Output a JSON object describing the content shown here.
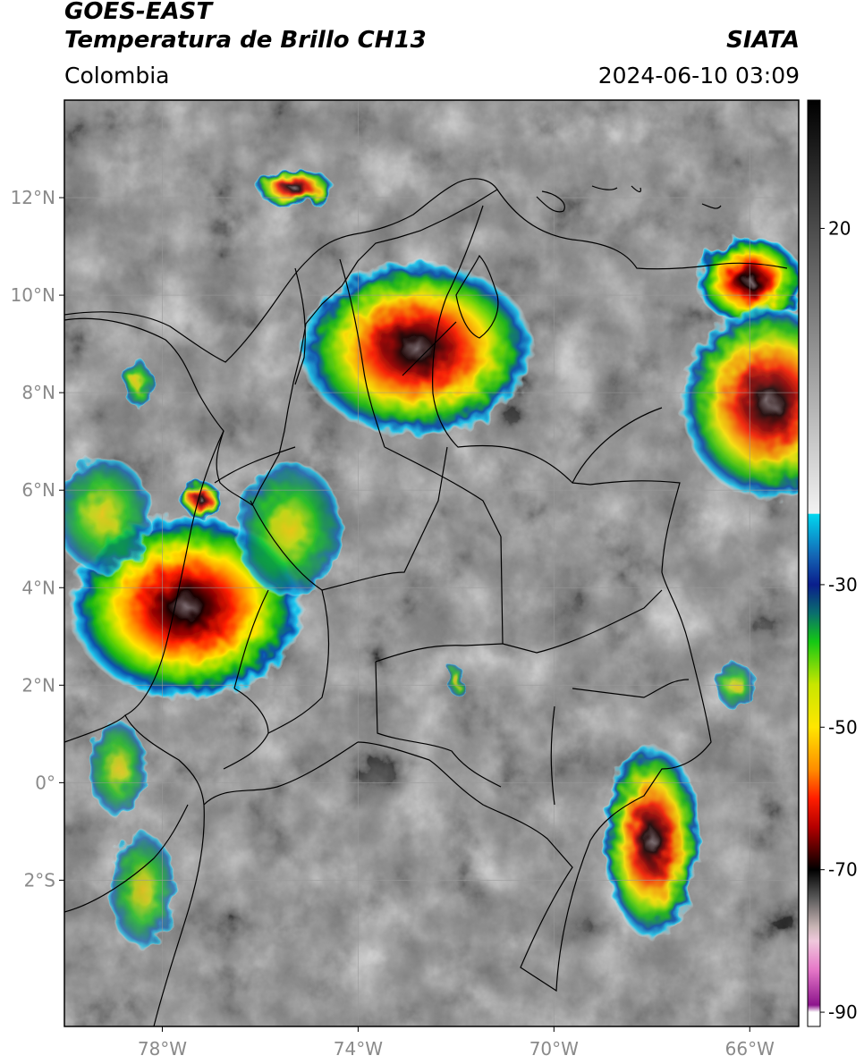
{
  "header": {
    "satellite": "GOES-EAST",
    "product": "Temperatura de Brillo CH13",
    "region": "Colombia",
    "agency": "SIATA",
    "timestamp": "2024-06-10 03:09"
  },
  "map": {
    "lon_range": [
      -80,
      -65
    ],
    "lat_range": [
      -5,
      14
    ],
    "lon_ticks": [
      {
        "value": -78,
        "label": "78°W"
      },
      {
        "value": -74,
        "label": "74°W"
      },
      {
        "value": -70,
        "label": "70°W"
      },
      {
        "value": -66,
        "label": "66°W"
      }
    ],
    "lat_ticks": [
      {
        "value": 12,
        "label": "12°N"
      },
      {
        "value": 10,
        "label": "10°N"
      },
      {
        "value": 8,
        "label": "8°N"
      },
      {
        "value": 6,
        "label": "6°N"
      },
      {
        "value": 4,
        "label": "4°N"
      },
      {
        "value": 2,
        "label": "2°N"
      },
      {
        "value": 0,
        "label": "0°"
      },
      {
        "value": -2,
        "label": "2°S"
      }
    ],
    "gridlines": true,
    "storm_cells": [
      {
        "lon": -72.8,
        "lat": 8.9,
        "rx": 2.4,
        "ry": 1.8,
        "intensity": 0.85
      },
      {
        "lon": -77.5,
        "lat": 3.6,
        "rx": 2.4,
        "ry": 1.9,
        "intensity": 1.0
      },
      {
        "lon": -75.4,
        "lat": 5.2,
        "rx": 1.1,
        "ry": 1.4,
        "intensity": 0.55
      },
      {
        "lon": -66.0,
        "lat": 10.3,
        "rx": 1.1,
        "ry": 0.9,
        "intensity": 0.95
      },
      {
        "lon": -65.6,
        "lat": 7.8,
        "rx": 1.8,
        "ry": 2.0,
        "intensity": 0.7
      },
      {
        "lon": -68.0,
        "lat": -1.2,
        "rx": 1.0,
        "ry": 2.0,
        "intensity": 0.7
      },
      {
        "lon": -79.2,
        "lat": 5.5,
        "rx": 1.0,
        "ry": 1.2,
        "intensity": 0.45
      },
      {
        "lon": -75.3,
        "lat": 12.2,
        "rx": 0.8,
        "ry": 0.4,
        "intensity": 0.6
      },
      {
        "lon": -78.4,
        "lat": -2.2,
        "rx": 0.7,
        "ry": 1.2,
        "intensity": 0.3
      },
      {
        "lon": -78.9,
        "lat": 0.3,
        "rx": 0.6,
        "ry": 1.0,
        "intensity": 0.3
      },
      {
        "lon": -77.2,
        "lat": 5.8,
        "rx": 0.4,
        "ry": 0.4,
        "intensity": 0.6
      },
      {
        "lon": -78.5,
        "lat": 8.2,
        "rx": 0.3,
        "ry": 0.5,
        "intensity": 0.45
      },
      {
        "lon": -66.3,
        "lat": 2.0,
        "rx": 0.4,
        "ry": 0.5,
        "intensity": 0.3
      },
      {
        "lon": -72.0,
        "lat": 2.1,
        "rx": 0.2,
        "ry": 0.3,
        "intensity": 0.2
      }
    ]
  },
  "colorbar": {
    "vmin": -92,
    "vmax": 38,
    "ticks": [
      {
        "value": 20,
        "label": "20"
      },
      {
        "value": -30,
        "label": "-30"
      },
      {
        "value": -50,
        "label": "-50"
      },
      {
        "value": -70,
        "label": "-70"
      },
      {
        "value": -90,
        "label": "-90"
      }
    ],
    "stops": [
      {
        "value": 38,
        "color": "#000000"
      },
      {
        "value": -20,
        "color": "#f2f2f2"
      },
      {
        "value": -20.1,
        "color": "#00d7f0"
      },
      {
        "value": -26,
        "color": "#1464b4"
      },
      {
        "value": -30,
        "color": "#0a1e8c"
      },
      {
        "value": -34,
        "color": "#0a6e6e"
      },
      {
        "value": -38,
        "color": "#14c814"
      },
      {
        "value": -44,
        "color": "#c8e600"
      },
      {
        "value": -50,
        "color": "#ffe600"
      },
      {
        "value": -56,
        "color": "#ff8c00"
      },
      {
        "value": -60,
        "color": "#ff1e00"
      },
      {
        "value": -64,
        "color": "#b40000"
      },
      {
        "value": -68,
        "color": "#3c0000"
      },
      {
        "value": -70,
        "color": "#000000"
      },
      {
        "value": -74,
        "color": "#5a5a5a"
      },
      {
        "value": -78,
        "color": "#c8b4b4"
      },
      {
        "value": -80,
        "color": "#f0c8dc"
      },
      {
        "value": -84,
        "color": "#e678c8"
      },
      {
        "value": -89,
        "color": "#8c148c"
      },
      {
        "value": -90,
        "color": "#ffffff"
      }
    ]
  }
}
